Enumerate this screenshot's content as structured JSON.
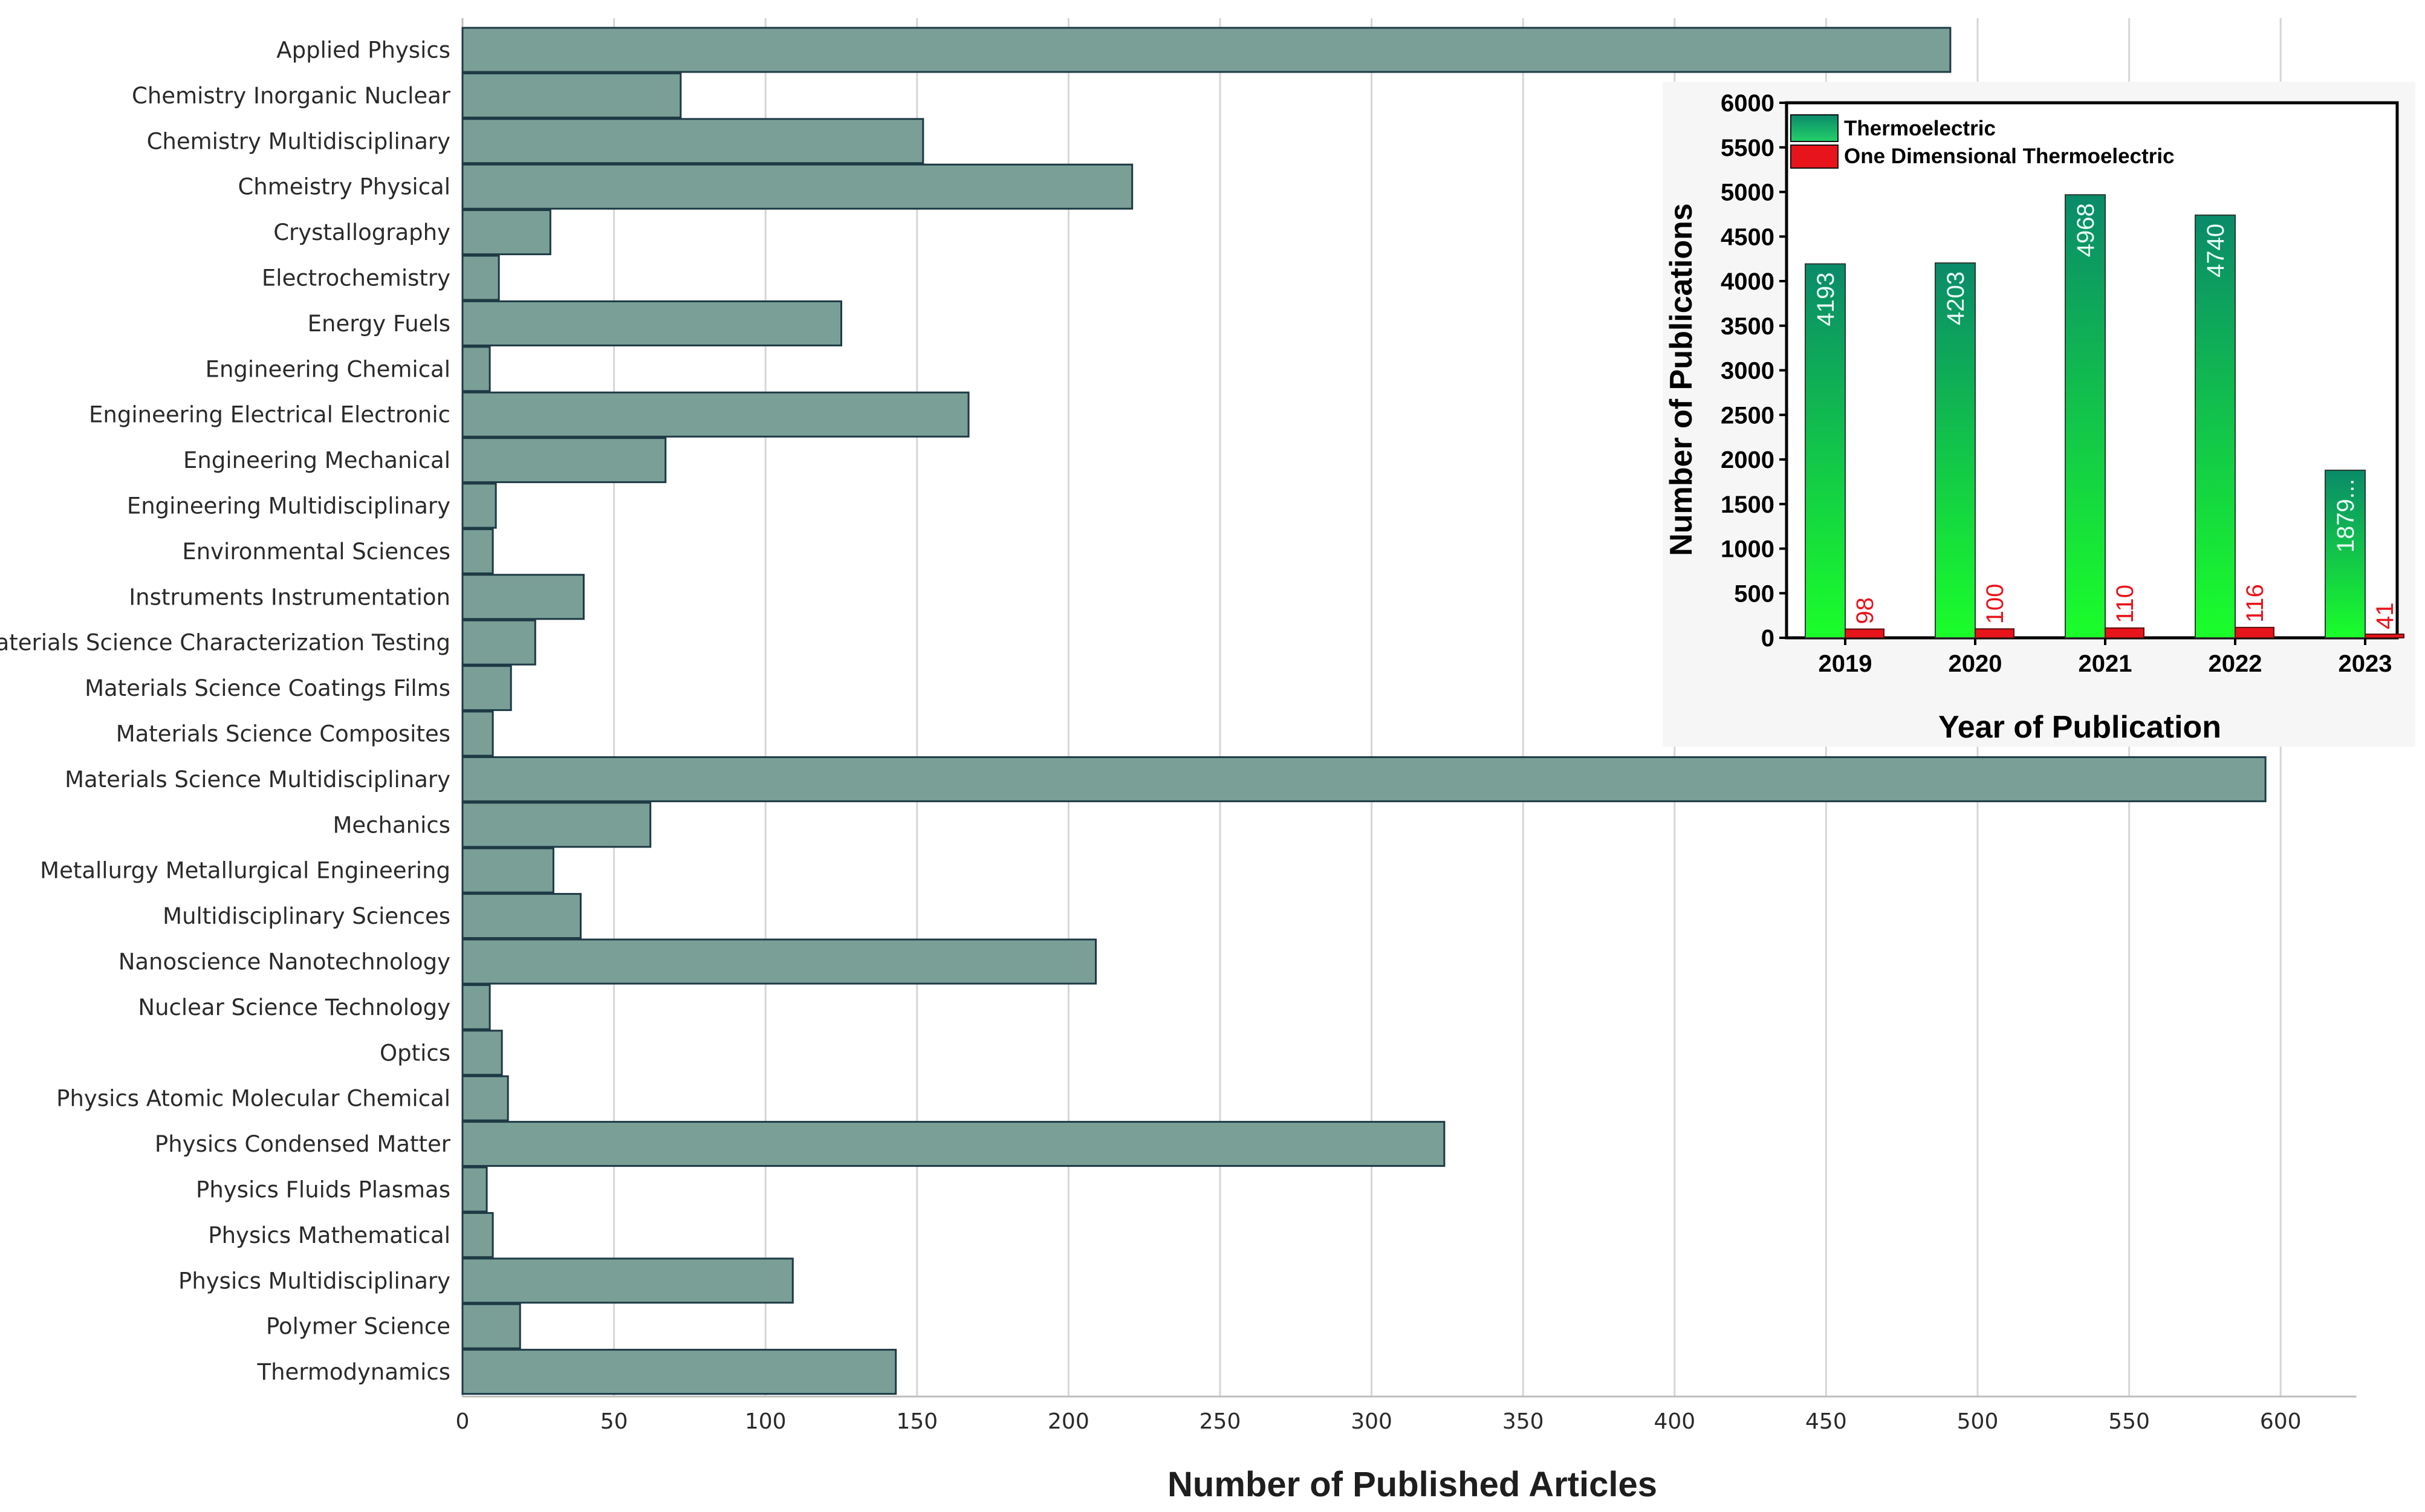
{
  "chart_data": [
    {
      "type": "bar",
      "orientation": "horizontal",
      "xlabel": "Number of Published Articles",
      "xlim": [
        0,
        625
      ],
      "x_ticks": [
        "0",
        "50",
        "100",
        "150",
        "200",
        "250",
        "300",
        "350",
        "400",
        "450",
        "500",
        "550",
        "600"
      ],
      "grid": true,
      "categories": [
        "Applied Physics",
        "Chemistry Inorganic Nuclear",
        "Chemistry Multidisciplinary",
        "Chmeistry Physical",
        "Crystallography",
        "Electrochemistry",
        "Energy Fuels",
        "Engineering Chemical",
        "Engineering Electrical Electronic",
        "Engineering Mechanical",
        "Engineering Multidisciplinary",
        "Environmental Sciences",
        "Instruments Instrumentation",
        "Materials Science Characterization Testing",
        "Materials Science Coatings Films",
        "Materials Science Composites",
        "Materials Science Multidisciplinary",
        "Mechanics",
        "Metallurgy Metallurgical Engineering",
        "Multidisciplinary Sciences",
        "Nanoscience Nanotechnology",
        "Nuclear Science Technology",
        "Optics",
        "Physics Atomic Molecular Chemical",
        "Physics Condensed Matter",
        "Physics Fluids Plasmas",
        "Physics Mathematical",
        "Physics Multidisciplinary",
        "Polymer Science",
        "Thermodynamics"
      ],
      "values": [
        491,
        72,
        152,
        221,
        29,
        12,
        125,
        9,
        167,
        67,
        11,
        10,
        40,
        24,
        16,
        10,
        595,
        62,
        30,
        39,
        209,
        9,
        13,
        15,
        324,
        8,
        10,
        109,
        19,
        143
      ],
      "bar_color": "#7a9f97"
    },
    {
      "type": "bar",
      "ylabel": "Number of Publications",
      "xlabel": "Year of Publication",
      "ylim": [
        0,
        6000
      ],
      "y_ticks": [
        "0",
        "500",
        "1000",
        "1500",
        "2000",
        "2500",
        "3000",
        "3500",
        "4000",
        "4500",
        "5000",
        "5500",
        "6000"
      ],
      "categories": [
        "2019",
        "2020",
        "2021",
        "2022",
        "2023"
      ],
      "legend_position": "top-left",
      "series": [
        {
          "name": "Thermoelectric",
          "values": [
            4193,
            4203,
            4968,
            4740,
            1879
          ],
          "labels": [
            "4193",
            "4203",
            "4968",
            "4740",
            "1879..."
          ],
          "color": "#0f9a74"
        },
        {
          "name": "One Dimensional Thermoelectric",
          "values": [
            98,
            100,
            110,
            116,
            41
          ],
          "labels": [
            "98",
            "100",
            "110",
            "116",
            "41"
          ],
          "color": "#e8141b"
        }
      ]
    }
  ]
}
